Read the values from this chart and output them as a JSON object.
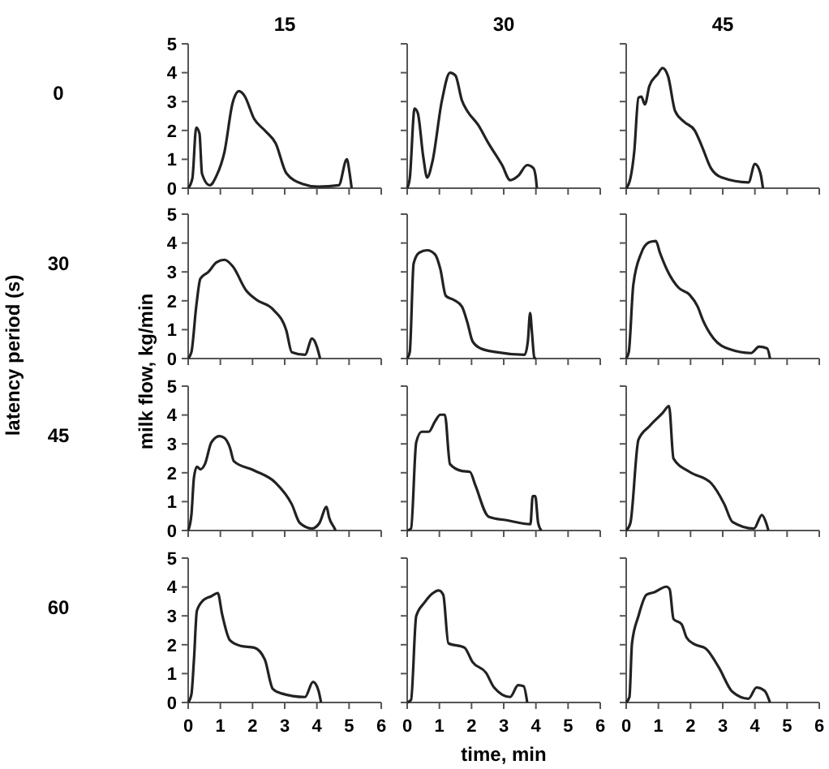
{
  "chart_data": [
    {
      "type": "line",
      "title": "15",
      "annotations": [
        "0"
      ],
      "x": [
        0,
        0.13,
        0.25,
        0.35,
        0.43,
        0.67,
        0.88,
        1.13,
        1.38,
        1.58,
        1.75,
        2.05,
        2.38,
        2.72,
        3.05,
        3.55,
        4.05,
        4.68,
        4.93,
        5.02,
        5.08
      ],
      "series": [
        {
          "color": "#222222",
          "values": [
            0,
            0.34,
            2.1,
            1.9,
            0.5,
            0.1,
            0.43,
            1.27,
            2.95,
            3.36,
            3.2,
            2.4,
            2.0,
            1.55,
            0.52,
            0.15,
            0.05,
            0.1,
            1.0,
            0.5,
            0
          ]
        }
      ],
      "xlim": [
        0,
        6
      ],
      "xticks": [
        0,
        1,
        2,
        3,
        4,
        5,
        6
      ],
      "ylim": [
        0,
        5
      ],
      "yticks": [
        0,
        1,
        2,
        3,
        4,
        5
      ],
      "tick_labels": "y"
    },
    {
      "type": "line",
      "title": "30",
      "x": [
        0,
        0.08,
        0.23,
        0.33,
        0.5,
        0.62,
        0.78,
        1.08,
        1.33,
        1.5,
        1.7,
        1.87,
        2.2,
        2.53,
        2.95,
        3.2,
        3.45,
        3.73,
        3.92,
        4.0,
        4.03
      ],
      "series": [
        {
          "color": "#222222",
          "values": [
            0,
            0.34,
            2.76,
            2.6,
            1.08,
            0.37,
            0.9,
            3.04,
            4.0,
            3.9,
            3.04,
            2.67,
            2.2,
            1.55,
            0.8,
            0.28,
            0.43,
            0.8,
            0.7,
            0.34,
            0
          ]
        }
      ],
      "xlim": [
        0,
        6
      ],
      "xticks": [
        0,
        1,
        2,
        3,
        4,
        5,
        6
      ],
      "ylim": [
        0,
        5
      ],
      "yticks": [
        0,
        1,
        2,
        3,
        4,
        5
      ],
      "tick_labels": false
    },
    {
      "type": "line",
      "title": "45",
      "x": [
        0,
        0.13,
        0.25,
        0.38,
        0.47,
        0.58,
        0.72,
        0.97,
        1.13,
        1.3,
        1.52,
        1.8,
        2.13,
        2.35,
        2.63,
        2.97,
        3.8,
        4.0,
        4.17,
        4.25
      ],
      "series": [
        {
          "color": "#222222",
          "values": [
            0,
            0.34,
            1.27,
            3.13,
            3.17,
            2.9,
            3.54,
            3.94,
            4.16,
            3.88,
            2.67,
            2.3,
            2.0,
            1.46,
            0.7,
            0.37,
            0.2,
            0.84,
            0.52,
            0
          ]
        }
      ],
      "xlim": [
        0,
        6
      ],
      "xticks": [
        0,
        1,
        2,
        3,
        4,
        5,
        6
      ],
      "ylim": [
        0,
        5
      ],
      "yticks": [
        0,
        1,
        2,
        3,
        4,
        5
      ],
      "tick_labels": false
    },
    {
      "type": "line",
      "ylabel": "milk flow, kg/min",
      "annotations": [
        "30",
        "latency period (s)"
      ],
      "x": [
        0,
        0.1,
        0.25,
        0.38,
        0.63,
        0.88,
        1.13,
        1.38,
        1.8,
        2.13,
        2.63,
        3.05,
        3.22,
        3.63,
        3.85,
        4.0,
        4.1
      ],
      "series": [
        {
          "color": "#222222",
          "values": [
            0,
            0.22,
            1.8,
            2.77,
            3.0,
            3.33,
            3.42,
            3.2,
            2.36,
            2.03,
            1.71,
            0.97,
            0.22,
            0.13,
            0.69,
            0.41,
            0
          ]
        }
      ],
      "xlim": [
        0,
        6
      ],
      "xticks": [
        0,
        1,
        2,
        3,
        4,
        5,
        6
      ],
      "ylim": [
        0,
        5
      ],
      "yticks": [
        0,
        1,
        2,
        3,
        4,
        5
      ],
      "tick_labels": "y"
    },
    {
      "type": "line",
      "x": [
        0,
        0.08,
        0.2,
        0.37,
        0.62,
        0.87,
        1.03,
        1.2,
        1.45,
        1.7,
        1.87,
        2.03,
        2.28,
        2.78,
        3.65,
        3.75,
        3.82,
        3.88,
        3.95,
        4.0
      ],
      "series": [
        {
          "color": "#222222",
          "values": [
            0,
            0.22,
            3.29,
            3.66,
            3.75,
            3.6,
            3.1,
            2.17,
            2.03,
            1.8,
            1.25,
            0.6,
            0.35,
            0.22,
            0.13,
            0.6,
            1.58,
            0.87,
            0.04,
            0
          ]
        }
      ],
      "xlim": [
        0,
        6
      ],
      "xticks": [
        0,
        1,
        2,
        3,
        4,
        5,
        6
      ],
      "ylim": [
        0,
        5
      ],
      "yticks": [
        0,
        1,
        2,
        3,
        4,
        5
      ],
      "tick_labels": false
    },
    {
      "type": "line",
      "x": [
        0,
        0.08,
        0.22,
        0.47,
        0.72,
        0.92,
        1.05,
        1.3,
        1.63,
        1.97,
        2.22,
        2.38,
        2.72,
        3.22,
        3.88,
        4.13,
        4.38,
        4.47
      ],
      "series": [
        {
          "color": "#222222",
          "values": [
            0,
            0.22,
            2.55,
            3.66,
            4.03,
            4.07,
            3.66,
            3.0,
            2.45,
            2.21,
            1.8,
            1.34,
            0.69,
            0.32,
            0.19,
            0.41,
            0.35,
            0
          ]
        }
      ],
      "xlim": [
        0,
        6
      ],
      "xticks": [
        0,
        1,
        2,
        3,
        4,
        5,
        6
      ],
      "ylim": [
        0,
        5
      ],
      "yticks": [
        0,
        1,
        2,
        3,
        4,
        5
      ],
      "tick_labels": false
    },
    {
      "type": "line",
      "annotations": [
        "45"
      ],
      "x": [
        0,
        0.1,
        0.18,
        0.27,
        0.38,
        0.52,
        0.72,
        0.97,
        1.13,
        1.3,
        1.42,
        2.05,
        2.72,
        3.22,
        3.47,
        3.85,
        4.08,
        4.3,
        4.38,
        4.55,
        4.58
      ],
      "series": [
        {
          "color": "#222222",
          "values": [
            0,
            0.54,
            1.84,
            2.21,
            2.12,
            2.3,
            3.05,
            3.27,
            3.2,
            2.86,
            2.4,
            2.08,
            1.65,
            0.91,
            0.26,
            0.07,
            0.26,
            0.82,
            0.45,
            0.07,
            0
          ]
        }
      ],
      "xlim": [
        0,
        6
      ],
      "xticks": [
        0,
        1,
        2,
        3,
        4,
        5,
        6
      ],
      "ylim": [
        0,
        5
      ],
      "yticks": [
        0,
        1,
        2,
        3,
        4,
        5
      ],
      "tick_labels": "y"
    },
    {
      "type": "line",
      "x": [
        0,
        0.12,
        0.28,
        0.45,
        0.67,
        0.87,
        1.03,
        1.17,
        1.33,
        1.7,
        1.95,
        2.12,
        2.53,
        3.12,
        3.83,
        3.9,
        3.98,
        4.07,
        4.17
      ],
      "series": [
        {
          "color": "#222222",
          "values": [
            0,
            0.07,
            3.05,
            3.42,
            3.42,
            3.79,
            4.01,
            4.01,
            2.3,
            2.06,
            2.03,
            1.56,
            0.48,
            0.35,
            0.22,
            1.19,
            1.19,
            0.26,
            0
          ]
        }
      ],
      "xlim": [
        0,
        6
      ],
      "xticks": [
        0,
        1,
        2,
        3,
        4,
        5,
        6
      ],
      "ylim": [
        0,
        5
      ],
      "yticks": [
        0,
        1,
        2,
        3,
        4,
        5
      ],
      "tick_labels": false
    },
    {
      "type": "line",
      "x": [
        0,
        0.13,
        0.38,
        0.72,
        1.13,
        1.33,
        1.47,
        1.97,
        2.63,
        3.05,
        3.3,
        3.97,
        4.22,
        4.35,
        4.42
      ],
      "series": [
        {
          "color": "#222222",
          "values": [
            0,
            0.26,
            3.14,
            3.61,
            4.07,
            4.31,
            2.49,
            2.03,
            1.65,
            0.91,
            0.3,
            0.07,
            0.54,
            0.26,
            0
          ]
        }
      ],
      "xlim": [
        0,
        6
      ],
      "xticks": [
        0,
        1,
        2,
        3,
        4,
        5,
        6
      ],
      "ylim": [
        0,
        5
      ],
      "yticks": [
        0,
        1,
        2,
        3,
        4,
        5
      ],
      "tick_labels": false
    },
    {
      "type": "line",
      "annotations": [
        "60"
      ],
      "x": [
        0,
        0.1,
        0.18,
        0.27,
        0.47,
        0.72,
        0.92,
        1.05,
        1.3,
        1.63,
        2.05,
        2.38,
        2.63,
        2.88,
        3.63,
        3.88,
        4.05,
        4.13
      ],
      "series": [
        {
          "color": "#222222",
          "values": [
            0,
            0.28,
            1.49,
            3.17,
            3.54,
            3.68,
            3.79,
            3.08,
            2.15,
            1.96,
            1.9,
            1.49,
            0.47,
            0.32,
            0.19,
            0.71,
            0.41,
            0
          ]
        }
      ],
      "xlim": [
        0,
        6
      ],
      "xticks": [
        0,
        1,
        2,
        3,
        4,
        5,
        6
      ],
      "ylim": [
        0,
        5
      ],
      "yticks": [
        0,
        1,
        2,
        3,
        4,
        5
      ]
    },
    {
      "type": "line",
      "xlabel": "time, min",
      "x": [
        0,
        0.12,
        0.28,
        0.53,
        0.78,
        0.98,
        1.12,
        1.28,
        1.78,
        2.03,
        2.45,
        2.7,
        3.2,
        3.45,
        3.62,
        3.73
      ],
      "series": [
        {
          "color": "#222222",
          "values": [
            0,
            0.09,
            2.99,
            3.45,
            3.77,
            3.88,
            3.73,
            2.05,
            1.9,
            1.4,
            1.03,
            0.52,
            0.19,
            0.6,
            0.56,
            0
          ]
        }
      ],
      "xlim": [
        0,
        6
      ],
      "xticks": [
        0,
        1,
        2,
        3,
        4,
        5,
        6
      ],
      "ylim": [
        0,
        5
      ],
      "yticks": [
        0,
        1,
        2,
        3,
        4,
        5
      ],
      "tick_labels": "x"
    },
    {
      "type": "line",
      "x": [
        0,
        0.1,
        0.18,
        0.38,
        0.63,
        0.88,
        1.25,
        1.35,
        1.47,
        1.72,
        1.88,
        2.13,
        2.47,
        2.88,
        3.3,
        3.8,
        4.05,
        4.3,
        4.47
      ],
      "series": [
        {
          "color": "#222222",
          "values": [
            0,
            0.19,
            2.05,
            2.99,
            3.73,
            3.82,
            4.01,
            3.92,
            2.89,
            2.71,
            2.24,
            2.01,
            1.87,
            1.21,
            0.37,
            0.13,
            0.52,
            0.41,
            0
          ]
        }
      ],
      "xlim": [
        0,
        6
      ],
      "xticks": [
        0,
        1,
        2,
        3,
        4,
        5,
        6
      ],
      "ylim": [
        0,
        5
      ],
      "yticks": [
        0,
        1,
        2,
        3,
        4,
        5
      ],
      "tick_labels": "x"
    }
  ]
}
